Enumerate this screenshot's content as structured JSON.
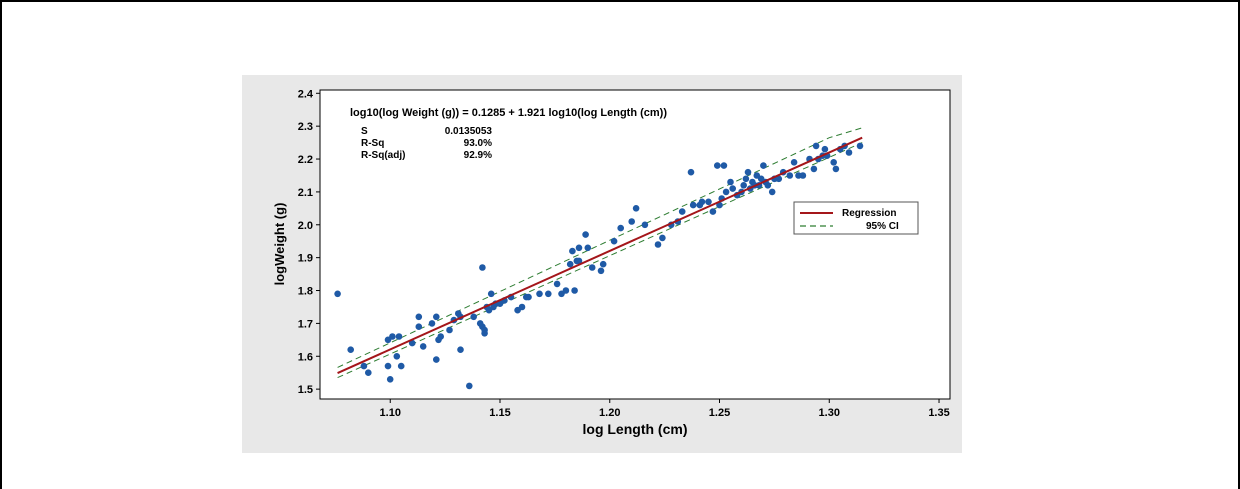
{
  "chart_data": {
    "type": "scatter",
    "equation": "log10(log Weight (g)) = 0.1285 + 1.921 log10(log Length (cm))",
    "stats": [
      {
        "label": "S",
        "value": "0.0135053"
      },
      {
        "label": "R-Sq",
        "value": "93.0%"
      },
      {
        "label": "R-Sq(adj)",
        "value": "92.9%"
      }
    ],
    "xlabel": "log Length (cm)",
    "ylabel": "logWeight (g)",
    "xlim": [
      1.068,
      1.355
    ],
    "ylim": [
      1.47,
      2.41
    ],
    "xticks": [
      "1.10",
      "1.15",
      "1.20",
      "1.25",
      "1.30",
      "1.35"
    ],
    "yticks": [
      "1.5",
      "1.6",
      "1.7",
      "1.8",
      "1.9",
      "2.0",
      "2.1",
      "2.2",
      "2.3",
      "2.4"
    ],
    "legend": {
      "placement": "right",
      "entries": [
        {
          "label": "Regression",
          "style": "solid",
          "color": "#a4161a"
        },
        {
          "label": "95% CI",
          "style": "dashed",
          "color": "#2e7d32"
        }
      ]
    },
    "point_color": "#1f5aa6",
    "regression": {
      "x": [
        1.076,
        1.315
      ],
      "y": [
        1.549,
        2.265
      ]
    },
    "ci_upper": {
      "x": [
        1.076,
        1.3,
        1.315
      ],
      "y": [
        1.566,
        2.265,
        2.295
      ]
    },
    "ci_lower": {
      "x": [
        1.076,
        1.315
      ],
      "y": [
        1.535,
        2.25
      ]
    },
    "points": [
      [
        1.076,
        1.79
      ],
      [
        1.082,
        1.62
      ],
      [
        1.088,
        1.57
      ],
      [
        1.09,
        1.55
      ],
      [
        1.099,
        1.57
      ],
      [
        1.099,
        1.65
      ],
      [
        1.1,
        1.53
      ],
      [
        1.101,
        1.66
      ],
      [
        1.103,
        1.6
      ],
      [
        1.104,
        1.66
      ],
      [
        1.105,
        1.57
      ],
      [
        1.11,
        1.64
      ],
      [
        1.113,
        1.72
      ],
      [
        1.113,
        1.69
      ],
      [
        1.115,
        1.63
      ],
      [
        1.119,
        1.7
      ],
      [
        1.121,
        1.59
      ],
      [
        1.121,
        1.72
      ],
      [
        1.122,
        1.65
      ],
      [
        1.123,
        1.66
      ],
      [
        1.127,
        1.68
      ],
      [
        1.129,
        1.71
      ],
      [
        1.131,
        1.73
      ],
      [
        1.132,
        1.72
      ],
      [
        1.132,
        1.62
      ],
      [
        1.136,
        1.51
      ],
      [
        1.138,
        1.72
      ],
      [
        1.141,
        1.7
      ],
      [
        1.142,
        1.69
      ],
      [
        1.142,
        1.87
      ],
      [
        1.143,
        1.67
      ],
      [
        1.143,
        1.68
      ],
      [
        1.144,
        1.75
      ],
      [
        1.145,
        1.74
      ],
      [
        1.146,
        1.79
      ],
      [
        1.147,
        1.75
      ],
      [
        1.148,
        1.76
      ],
      [
        1.15,
        1.76
      ],
      [
        1.152,
        1.77
      ],
      [
        1.155,
        1.78
      ],
      [
        1.158,
        1.74
      ],
      [
        1.16,
        1.75
      ],
      [
        1.162,
        1.78
      ],
      [
        1.163,
        1.78
      ],
      [
        1.168,
        1.79
      ],
      [
        1.172,
        1.79
      ],
      [
        1.176,
        1.82
      ],
      [
        1.178,
        1.79
      ],
      [
        1.18,
        1.8
      ],
      [
        1.182,
        1.88
      ],
      [
        1.183,
        1.92
      ],
      [
        1.184,
        1.8
      ],
      [
        1.185,
        1.89
      ],
      [
        1.186,
        1.93
      ],
      [
        1.186,
        1.89
      ],
      [
        1.189,
        1.97
      ],
      [
        1.19,
        1.93
      ],
      [
        1.192,
        1.87
      ],
      [
        1.196,
        1.86
      ],
      [
        1.197,
        1.88
      ],
      [
        1.202,
        1.95
      ],
      [
        1.205,
        1.99
      ],
      [
        1.21,
        2.01
      ],
      [
        1.212,
        2.05
      ],
      [
        1.216,
        2.0
      ],
      [
        1.222,
        1.94
      ],
      [
        1.224,
        1.96
      ],
      [
        1.228,
        2.0
      ],
      [
        1.231,
        2.01
      ],
      [
        1.233,
        2.04
      ],
      [
        1.237,
        2.16
      ],
      [
        1.238,
        2.06
      ],
      [
        1.241,
        2.06
      ],
      [
        1.242,
        2.07
      ],
      [
        1.245,
        2.07
      ],
      [
        1.247,
        2.04
      ],
      [
        1.249,
        2.18
      ],
      [
        1.25,
        2.06
      ],
      [
        1.251,
        2.08
      ],
      [
        1.252,
        2.18
      ],
      [
        1.253,
        2.1
      ],
      [
        1.255,
        2.13
      ],
      [
        1.256,
        2.11
      ],
      [
        1.258,
        2.09
      ],
      [
        1.26,
        2.1
      ],
      [
        1.261,
        2.12
      ],
      [
        1.262,
        2.14
      ],
      [
        1.263,
        2.16
      ],
      [
        1.264,
        2.11
      ],
      [
        1.265,
        2.13
      ],
      [
        1.266,
        2.12
      ],
      [
        1.267,
        2.15
      ],
      [
        1.268,
        2.12
      ],
      [
        1.269,
        2.14
      ],
      [
        1.27,
        2.18
      ],
      [
        1.271,
        2.13
      ],
      [
        1.272,
        2.12
      ],
      [
        1.274,
        2.1
      ],
      [
        1.275,
        2.14
      ],
      [
        1.277,
        2.14
      ],
      [
        1.279,
        2.16
      ],
      [
        1.282,
        2.15
      ],
      [
        1.284,
        2.19
      ],
      [
        1.286,
        2.15
      ],
      [
        1.288,
        2.15
      ],
      [
        1.291,
        2.2
      ],
      [
        1.293,
        2.17
      ],
      [
        1.294,
        2.24
      ],
      [
        1.295,
        2.2
      ],
      [
        1.297,
        2.21
      ],
      [
        1.298,
        2.23
      ],
      [
        1.299,
        2.21
      ],
      [
        1.302,
        2.19
      ],
      [
        1.303,
        2.17
      ],
      [
        1.305,
        2.23
      ],
      [
        1.307,
        2.24
      ],
      [
        1.309,
        2.22
      ],
      [
        1.314,
        2.24
      ]
    ]
  }
}
